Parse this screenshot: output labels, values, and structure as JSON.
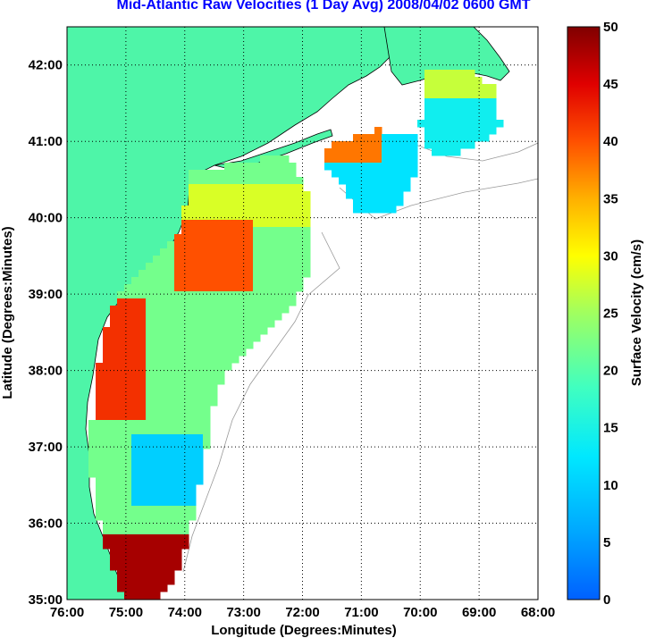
{
  "title": "Mid-Atlantic Raw Velocities (1 Day Avg) 2008/04/02 0600 GMT",
  "x_axis": {
    "label": "Longitude (Degrees:Minutes)",
    "ticks": [
      "76:00",
      "75:00",
      "74:00",
      "73:00",
      "72:00",
      "71:00",
      "70:00",
      "69:00",
      "68:00"
    ]
  },
  "y_axis": {
    "label": "Latitude (Degrees:Minutes)",
    "ticks": [
      "35:00",
      "36:00",
      "37:00",
      "38:00",
      "39:00",
      "40:00",
      "41:00",
      "42:00"
    ]
  },
  "colorbar": {
    "label": "Surface Velocity (cm/s)",
    "ticks": [
      "0",
      "5",
      "10",
      "15",
      "20",
      "25",
      "30",
      "35",
      "40",
      "45",
      "50"
    ],
    "min": 0,
    "max": 50
  },
  "map_extent": {
    "lon_min": -76,
    "lon_max": -68,
    "lat_min": 35,
    "lat_max": 42.5
  },
  "colors": {
    "land": "#4ef5a8",
    "title": "#0000ff"
  }
}
